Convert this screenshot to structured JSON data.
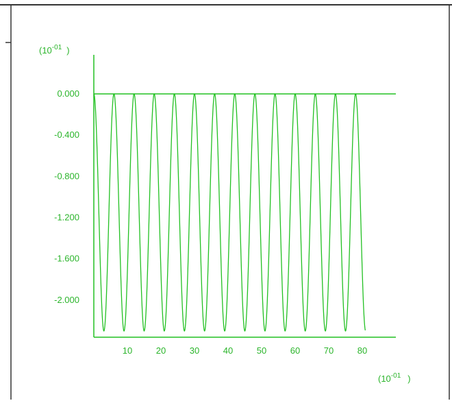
{
  "colors": {
    "plot": "#22c022",
    "text": "#2bb52b",
    "frame": "#333333",
    "background": "#ffffff"
  },
  "chart_data": {
    "type": "line",
    "title": "",
    "xlabel": "",
    "ylabel": "",
    "x_multiplier": {
      "base": "(10",
      "exp": "-01",
      "close": ")"
    },
    "y_multiplier": {
      "base": "(10",
      "exp": "-01",
      "close": ")"
    },
    "xlim": [
      0,
      90
    ],
    "ylim": [
      -2.36,
      0
    ],
    "xticks": [
      {
        "value": 10,
        "label": "10"
      },
      {
        "value": 20,
        "label": "20"
      },
      {
        "value": 30,
        "label": "30"
      },
      {
        "value": 40,
        "label": "40"
      },
      {
        "value": 50,
        "label": "50"
      },
      {
        "value": 60,
        "label": "60"
      },
      {
        "value": 70,
        "label": "70"
      },
      {
        "value": 80,
        "label": "80"
      }
    ],
    "yticks": [
      {
        "value": 0,
        "label": "0.000"
      },
      {
        "value": -0.4,
        "label": "-0.400"
      },
      {
        "value": -0.8,
        "label": "-0.800"
      },
      {
        "value": -1.2,
        "label": "-1.200"
      },
      {
        "value": -1.6,
        "label": "-1.600"
      },
      {
        "value": -2.0,
        "label": "-2.000"
      }
    ],
    "grid": false,
    "legend": "none",
    "series": [
      {
        "function": "oscillation",
        "x_start": 0,
        "x_end": 80.9,
        "period": 6.0,
        "max": 0.0,
        "min": -2.3
      }
    ]
  }
}
